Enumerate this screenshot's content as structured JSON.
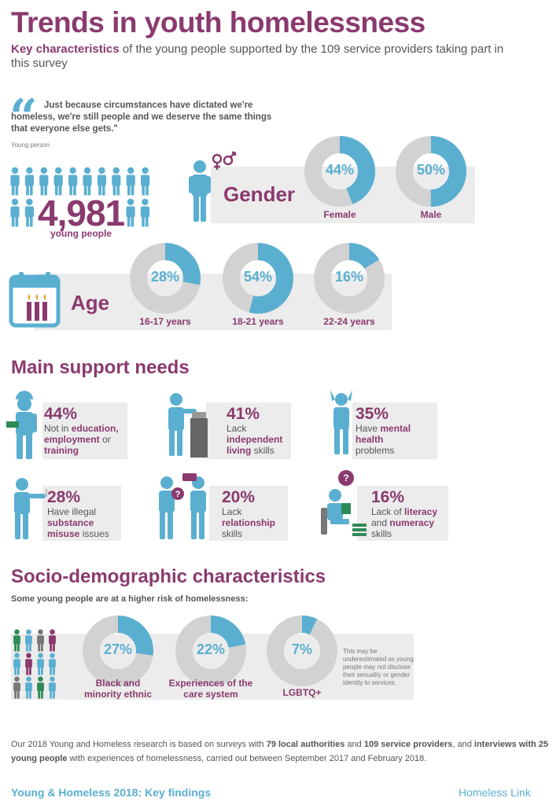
{
  "header": {
    "title": "Trends in youth homelessness",
    "subtitle_bold": "Key characteristics",
    "subtitle_rest": " of the young people supported by the 109 service providers taking part in this survey"
  },
  "quote": {
    "text": "Just because circumstances have dictated we're homeless, we're still people and we deserve the same things that everyone else gets.\"",
    "attribution": "Young person"
  },
  "people": {
    "count": "4,981",
    "label": "young people"
  },
  "gender": {
    "title": "Gender",
    "items": [
      {
        "pct": "44%",
        "value": 44,
        "label": "Female"
      },
      {
        "pct": "50%",
        "value": 50,
        "label": "Male"
      }
    ]
  },
  "age": {
    "title": "Age",
    "items": [
      {
        "pct": "28%",
        "value": 28,
        "label": "16-17 years"
      },
      {
        "pct": "54%",
        "value": 54,
        "label": "18-21 years"
      },
      {
        "pct": "16%",
        "value": 16,
        "label": "22-24 years"
      }
    ]
  },
  "support": {
    "title": "Main support needs",
    "items": [
      {
        "pct": "44%",
        "pre": "Not in ",
        "b1": "education, employment",
        "mid": " or ",
        "b2": "training",
        "post": ""
      },
      {
        "pct": "41%",
        "pre": "Lack ",
        "b1": "independent living",
        "mid": " skills",
        "b2": "",
        "post": ""
      },
      {
        "pct": "35%",
        "pre": "Have ",
        "b1": "mental health",
        "mid": " problems",
        "b2": "",
        "post": ""
      },
      {
        "pct": "28%",
        "pre": "Have illegal ",
        "b1": "substance misuse",
        "mid": " issues",
        "b2": "",
        "post": ""
      },
      {
        "pct": "20%",
        "pre": "Lack ",
        "b1": "relationship",
        "mid": " skills",
        "b2": "",
        "post": ""
      },
      {
        "pct": "16%",
        "pre": "Lack of ",
        "b1": "literacy",
        "mid": " and ",
        "b2": "numeracy",
        "post": " skills"
      }
    ]
  },
  "socio": {
    "title": "Socio-demographic characteristics",
    "subtitle": "Some young people are at a higher risk of homelessness:",
    "items": [
      {
        "pct": "27%",
        "value": 27,
        "label": "Black and minority ethnic"
      },
      {
        "pct": "22%",
        "value": 22,
        "label": "Experiences of the care system"
      },
      {
        "pct": "7%",
        "value": 7,
        "label": "LGBTQ+"
      }
    ],
    "note": "This may be underestimated as young people may not disclose their sexuality or gender identity to services."
  },
  "methodology": {
    "p1": "Our 2018 Young and Homeless research is based on surveys with ",
    "b1": "79 local authorities",
    "p2": " and ",
    "b2": "109 service providers",
    "p3": ", and ",
    "b3": "interviews with 25 young people",
    "p4": " with experiences of homelessness, carried out between September 2017 and February 2018."
  },
  "footer": {
    "left": "Young & Homeless 2018: Key findings",
    "right": "Homeless Link"
  },
  "colors": {
    "purple": "#8a3a6e",
    "blue": "#5aafd1",
    "grey": "#d2d2d2",
    "panel": "#ececec"
  }
}
